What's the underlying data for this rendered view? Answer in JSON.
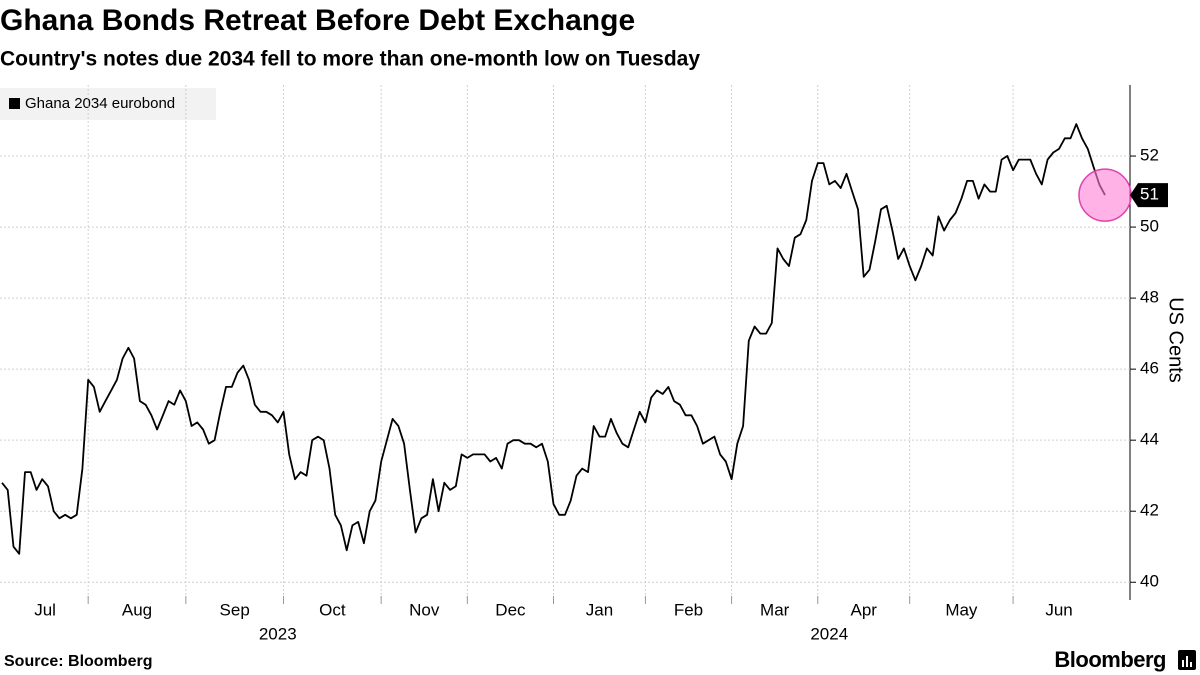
{
  "chart_data": {
    "type": "line",
    "title": "Ghana Bonds Retreat Before Debt Exchange",
    "subtitle": "Country's notes due 2034 fell to more than one-month low on Tuesday",
    "y_label": "US Cents",
    "source": "Source: Bloomberg",
    "branding": "Bloomberg",
    "grid": true,
    "categories": [
      "Jul",
      null,
      null,
      null,
      null,
      null,
      null,
      null,
      null,
      null,
      null,
      null,
      null,
      null,
      null,
      "Aug",
      null,
      null,
      null,
      null,
      null,
      null,
      null,
      null,
      null,
      null,
      null,
      null,
      null,
      null,
      null,
      null,
      "Sep",
      null,
      null,
      null,
      null,
      null,
      null,
      null,
      null,
      null,
      null,
      null,
      null,
      null,
      null,
      null,
      null,
      "Oct",
      null,
      null,
      null,
      null,
      null,
      null,
      null,
      null,
      null,
      null,
      null,
      null,
      null,
      null,
      null,
      null,
      "Nov",
      null,
      null,
      null,
      null,
      null,
      null,
      null,
      null,
      null,
      null,
      null,
      null,
      null,
      null,
      "Dec",
      null,
      null,
      null,
      null,
      null,
      null,
      null,
      null,
      null,
      null,
      null,
      null,
      null,
      null,
      "Jan",
      null,
      null,
      null,
      null,
      null,
      null,
      null,
      null,
      null,
      null,
      null,
      null,
      null,
      null,
      null,
      "Feb",
      null,
      null,
      null,
      null,
      null,
      null,
      null,
      null,
      null,
      null,
      null,
      null,
      null,
      null,
      "Mar",
      null,
      null,
      null,
      null,
      null,
      null,
      null,
      null,
      null,
      null,
      null,
      null,
      null,
      null,
      "Apr",
      null,
      null,
      null,
      null,
      null,
      null,
      null,
      null,
      null,
      null,
      null,
      null,
      null,
      null,
      null,
      "May",
      null,
      null,
      null,
      null,
      null,
      null,
      null,
      null,
      null,
      null,
      null,
      null,
      null,
      null,
      null,
      null,
      null,
      "Jun",
      null,
      null,
      null,
      null,
      null,
      null,
      null,
      null,
      null,
      null,
      null,
      null,
      null,
      null,
      null,
      null
    ],
    "years": [
      {
        "label": "2023",
        "from": "Jul",
        "to": "Dec"
      },
      {
        "label": "2024",
        "from": "Jan",
        "to": "Jun"
      }
    ],
    "series": [
      {
        "name": "Ghana 2034 eurobond",
        "color": "#000000",
        "values": [
          42.8,
          42.6,
          41.0,
          40.8,
          43.1,
          43.1,
          42.6,
          42.9,
          42.7,
          42.0,
          41.8,
          41.9,
          41.8,
          41.9,
          43.2,
          45.7,
          45.5,
          44.8,
          45.1,
          45.4,
          45.7,
          46.3,
          46.6,
          46.3,
          45.1,
          45.0,
          44.7,
          44.3,
          44.7,
          45.1,
          45.0,
          45.4,
          45.1,
          44.4,
          44.5,
          44.3,
          43.9,
          44.0,
          44.8,
          45.5,
          45.5,
          45.9,
          46.1,
          45.7,
          45.0,
          44.8,
          44.8,
          44.7,
          44.5,
          44.8,
          43.6,
          42.9,
          43.1,
          43.0,
          44.0,
          44.1,
          44.0,
          43.2,
          41.9,
          41.6,
          40.9,
          41.6,
          41.7,
          41.1,
          42.0,
          42.3,
          43.4,
          44.0,
          44.6,
          44.4,
          43.9,
          42.6,
          41.4,
          41.8,
          41.9,
          42.9,
          42.0,
          42.8,
          42.6,
          42.7,
          43.6,
          43.5,
          43.6,
          43.6,
          43.6,
          43.4,
          43.5,
          43.2,
          43.9,
          44.0,
          44.0,
          43.9,
          43.9,
          43.8,
          43.9,
          43.4,
          42.2,
          41.9,
          41.9,
          42.3,
          43.0,
          43.2,
          43.1,
          44.4,
          44.1,
          44.1,
          44.6,
          44.2,
          43.9,
          43.8,
          44.3,
          44.8,
          44.5,
          45.2,
          45.4,
          45.3,
          45.5,
          45.1,
          45.0,
          44.7,
          44.7,
          44.4,
          43.9,
          44.0,
          44.1,
          43.6,
          43.4,
          42.9,
          43.9,
          44.4,
          46.8,
          47.2,
          47.0,
          47.0,
          47.3,
          49.4,
          49.1,
          48.9,
          49.7,
          49.8,
          50.2,
          51.3,
          51.8,
          51.8,
          51.2,
          51.3,
          51.1,
          51.5,
          51.0,
          50.5,
          48.6,
          48.8,
          49.6,
          50.5,
          50.6,
          49.9,
          49.1,
          49.4,
          48.9,
          48.5,
          48.9,
          49.4,
          49.2,
          50.3,
          49.9,
          50.2,
          50.4,
          50.8,
          51.3,
          51.3,
          50.8,
          51.2,
          51.0,
          51.0,
          51.9,
          52.0,
          51.6,
          51.9,
          51.9,
          51.9,
          51.5,
          51.2,
          51.9,
          52.1,
          52.2,
          52.5,
          52.5,
          52.9,
          52.5,
          52.2,
          51.7,
          51.2,
          50.9
        ],
        "value_labels": [
          null,
          null,
          null,
          null,
          null,
          null,
          null,
          null,
          null,
          null,
          null,
          null,
          null,
          null,
          null,
          null,
          null,
          null,
          null,
          null,
          null,
          null,
          null,
          null,
          null,
          null,
          null,
          null,
          null,
          null,
          null,
          null,
          null,
          null,
          null,
          null,
          null,
          null,
          null,
          null,
          null,
          null,
          null,
          null,
          null,
          null,
          null,
          null,
          null,
          null,
          null,
          null,
          null,
          null,
          null,
          null,
          null,
          null,
          null,
          null,
          null,
          null,
          null,
          null,
          null,
          null,
          null,
          null,
          null,
          null,
          null,
          null,
          null,
          null,
          null,
          null,
          null,
          null,
          null,
          null,
          null,
          null,
          null,
          null,
          null,
          null,
          null,
          null,
          null,
          null,
          null,
          null,
          null,
          null,
          null,
          null,
          null,
          null,
          null,
          null,
          null,
          null,
          null,
          null,
          null,
          null,
          null,
          null,
          null,
          null,
          null,
          null,
          null,
          null,
          null,
          null,
          null,
          null,
          null,
          null,
          null,
          null,
          null,
          null,
          null,
          null,
          null,
          null,
          null,
          null,
          null,
          null,
          null,
          null,
          null,
          null,
          null,
          null,
          null,
          null,
          null,
          null,
          null,
          null,
          null,
          null,
          null,
          null,
          null,
          null,
          null,
          null,
          null,
          null,
          null,
          null,
          null,
          null,
          null,
          null,
          null,
          null,
          null,
          null,
          null,
          null,
          null,
          null,
          null,
          null,
          null,
          null,
          null,
          null,
          null,
          null,
          null,
          null,
          null,
          null,
          null,
          null,
          null,
          null,
          null,
          null,
          null,
          null,
          null,
          null,
          null,
          null,
          "51"
        ]
      }
    ],
    "ylim": [
      39.5,
      54
    ],
    "yticks": [
      40,
      42,
      44,
      46,
      48,
      50,
      52
    ]
  }
}
